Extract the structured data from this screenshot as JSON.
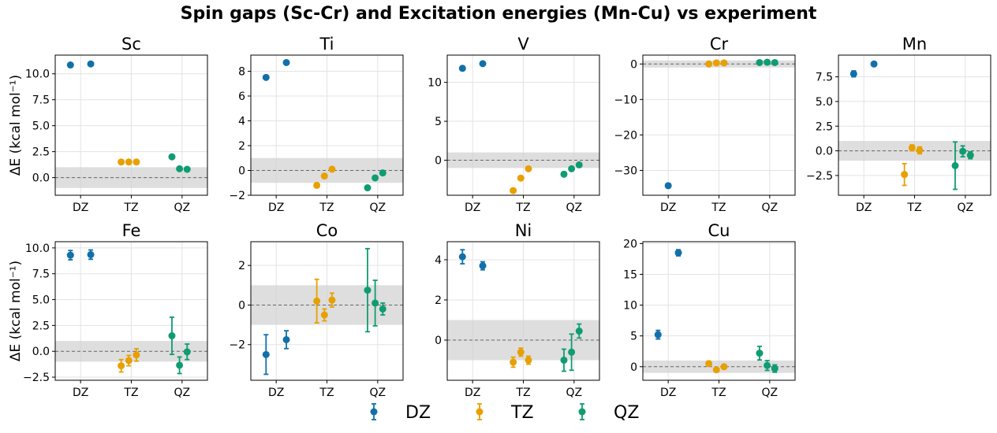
{
  "chart_data": {
    "type": "scatter",
    "title": "Spin gaps (Sc-Cr) and Excitation energies (Mn-Cu) vs experiment",
    "ylabel": "ΔE (kcal mol⁻¹)",
    "reference_band": [
      -1,
      1
    ],
    "series_colors": {
      "DZ": "#1170aa",
      "TZ": "#e8a000",
      "QZ": "#0e9c72"
    },
    "legend": [
      {
        "name": "DZ",
        "color": "#1170aa"
      },
      {
        "name": "TZ",
        "color": "#e8a000"
      },
      {
        "name": "QZ",
        "color": "#0e9c72"
      }
    ],
    "panels": [
      {
        "name": "Sc",
        "ylim": [
          -1.7,
          11.8
        ],
        "yticks": [
          0.0,
          2.5,
          5.0,
          7.5,
          10.0
        ],
        "yticklabels": [
          "0.0",
          "2.5",
          "5.0",
          "7.5",
          "10.0"
        ],
        "xticks": [
          "DZ",
          "TZ",
          "QZ"
        ],
        "points": [
          {
            "series": "DZ",
            "x": -0.2,
            "y": 10.85,
            "err": 0
          },
          {
            "series": "DZ",
            "x": 0.2,
            "y": 10.95,
            "err": 0
          },
          {
            "series": "TZ",
            "x": 0.8,
            "y": 1.5,
            "err": 0
          },
          {
            "series": "TZ",
            "x": 0.95,
            "y": 1.5,
            "err": 0
          },
          {
            "series": "TZ",
            "x": 1.1,
            "y": 1.5,
            "err": 0
          },
          {
            "series": "QZ",
            "x": 1.8,
            "y": 2.0,
            "err": 0
          },
          {
            "series": "QZ",
            "x": 1.95,
            "y": 0.85,
            "err": 0
          },
          {
            "series": "QZ",
            "x": 2.1,
            "y": 0.8,
            "err": 0
          }
        ]
      },
      {
        "name": "Ti",
        "ylim": [
          -2.0,
          9.3
        ],
        "yticks": [
          -2,
          0,
          2,
          4,
          6,
          8
        ],
        "yticklabels": [
          "−2",
          "0",
          "2",
          "4",
          "6",
          "8"
        ],
        "xticks": [
          "DZ",
          "TZ",
          "QZ"
        ],
        "points": [
          {
            "series": "DZ",
            "x": -0.2,
            "y": 7.5,
            "err": 0
          },
          {
            "series": "DZ",
            "x": 0.2,
            "y": 8.7,
            "err": 0
          },
          {
            "series": "TZ",
            "x": 0.8,
            "y": -1.2,
            "err": 0
          },
          {
            "series": "TZ",
            "x": 0.95,
            "y": -0.45,
            "err": 0
          },
          {
            "series": "TZ",
            "x": 1.1,
            "y": 0.1,
            "err": 0
          },
          {
            "series": "QZ",
            "x": 1.8,
            "y": -1.4,
            "err": 0
          },
          {
            "series": "QZ",
            "x": 1.95,
            "y": -0.6,
            "err": 0
          },
          {
            "series": "QZ",
            "x": 2.1,
            "y": -0.2,
            "err": 0
          }
        ]
      },
      {
        "name": "V",
        "ylim": [
          -4.5,
          13.5
        ],
        "yticks": [
          0,
          5,
          10
        ],
        "yticklabels": [
          "0",
          "5",
          "10"
        ],
        "xticks": [
          "DZ",
          "TZ",
          "QZ"
        ],
        "points": [
          {
            "series": "DZ",
            "x": -0.2,
            "y": 11.8,
            "err": 0
          },
          {
            "series": "DZ",
            "x": 0.2,
            "y": 12.4,
            "err": 0
          },
          {
            "series": "TZ",
            "x": 0.8,
            "y": -3.9,
            "err": 0
          },
          {
            "series": "TZ",
            "x": 0.95,
            "y": -2.3,
            "err": 0
          },
          {
            "series": "TZ",
            "x": 1.1,
            "y": -1.1,
            "err": 0
          },
          {
            "series": "QZ",
            "x": 1.8,
            "y": -1.8,
            "err": 0
          },
          {
            "series": "QZ",
            "x": 1.95,
            "y": -1.1,
            "err": 0
          },
          {
            "series": "QZ",
            "x": 2.1,
            "y": -0.6,
            "err": 0
          }
        ]
      },
      {
        "name": "Cr",
        "ylim": [
          -37.0,
          2.5
        ],
        "yticks": [
          -30,
          -20,
          -10,
          0
        ],
        "yticklabels": [
          "−30",
          "−20",
          "−10",
          "0"
        ],
        "xticks": [
          "DZ",
          "TZ",
          "QZ"
        ],
        "points": [
          {
            "series": "DZ",
            "x": 0.0,
            "y": -34.3,
            "err": 0.6
          },
          {
            "series": "TZ",
            "x": 0.8,
            "y": 0.0,
            "err": 0
          },
          {
            "series": "TZ",
            "x": 0.95,
            "y": 0.3,
            "err": 0
          },
          {
            "series": "TZ",
            "x": 1.1,
            "y": 0.3,
            "err": 0
          },
          {
            "series": "QZ",
            "x": 1.8,
            "y": 0.4,
            "err": 0
          },
          {
            "series": "QZ",
            "x": 1.95,
            "y": 0.5,
            "err": 0
          },
          {
            "series": "QZ",
            "x": 2.1,
            "y": 0.4,
            "err": 0
          }
        ]
      },
      {
        "name": "Mn",
        "ylim": [
          -4.5,
          9.7
        ],
        "yticks": [
          -2.5,
          0.0,
          2.5,
          5.0,
          7.5
        ],
        "yticklabels": [
          "−2.5",
          "0.0",
          "2.5",
          "5.0",
          "7.5"
        ],
        "xticks": [
          "DZ",
          "TZ",
          "QZ"
        ],
        "points": [
          {
            "series": "DZ",
            "x": -0.2,
            "y": 7.8,
            "err": 0.3
          },
          {
            "series": "DZ",
            "x": 0.2,
            "y": 8.8,
            "err": 0
          },
          {
            "series": "TZ",
            "x": 0.8,
            "y": -2.4,
            "err": 1.1
          },
          {
            "series": "TZ",
            "x": 0.95,
            "y": 0.3,
            "err": 0.3
          },
          {
            "series": "TZ",
            "x": 1.1,
            "y": 0.05,
            "err": 0.35
          },
          {
            "series": "QZ",
            "x": 1.8,
            "y": -1.5,
            "err": 2.4
          },
          {
            "series": "QZ",
            "x": 1.95,
            "y": -0.05,
            "err": 0.55
          },
          {
            "series": "QZ",
            "x": 2.1,
            "y": -0.45,
            "err": 0.35
          }
        ]
      },
      {
        "name": "Fe",
        "ylim": [
          -2.8,
          10.6
        ],
        "yticks": [
          -2.5,
          0.0,
          2.5,
          5.0,
          7.5,
          10.0
        ],
        "yticklabels": [
          "−2.5",
          "0.0",
          "2.5",
          "5.0",
          "7.5",
          "10.0"
        ],
        "xticks": [
          "DZ",
          "TZ",
          "QZ"
        ],
        "points": [
          {
            "series": "DZ",
            "x": -0.2,
            "y": 9.3,
            "err": 0.45
          },
          {
            "series": "DZ",
            "x": 0.2,
            "y": 9.35,
            "err": 0.45
          },
          {
            "series": "TZ",
            "x": 0.8,
            "y": -1.4,
            "err": 0.6
          },
          {
            "series": "TZ",
            "x": 0.95,
            "y": -0.9,
            "err": 0.5
          },
          {
            "series": "TZ",
            "x": 1.1,
            "y": -0.35,
            "err": 0.6
          },
          {
            "series": "QZ",
            "x": 1.8,
            "y": 1.5,
            "err": 1.8
          },
          {
            "series": "QZ",
            "x": 1.95,
            "y": -1.35,
            "err": 0.8
          },
          {
            "series": "QZ",
            "x": 2.1,
            "y": -0.05,
            "err": 0.75
          }
        ]
      },
      {
        "name": "Co",
        "ylim": [
          -3.8,
          3.2
        ],
        "yticks": [
          -2,
          0,
          2
        ],
        "yticklabels": [
          "−2",
          "0",
          "2"
        ],
        "xticks": [
          "DZ",
          "TZ",
          "QZ"
        ],
        "points": [
          {
            "series": "DZ",
            "x": -0.2,
            "y": -2.5,
            "err": 1.0
          },
          {
            "series": "DZ",
            "x": 0.2,
            "y": -1.75,
            "err": 0.45
          },
          {
            "series": "TZ",
            "x": 0.8,
            "y": 0.2,
            "err": 1.1
          },
          {
            "series": "TZ",
            "x": 0.95,
            "y": -0.5,
            "err": 0.3
          },
          {
            "series": "TZ",
            "x": 1.1,
            "y": 0.25,
            "err": 0.35
          },
          {
            "series": "QZ",
            "x": 1.8,
            "y": 0.75,
            "err": 2.1
          },
          {
            "series": "QZ",
            "x": 1.95,
            "y": 0.1,
            "err": 1.15
          },
          {
            "series": "QZ",
            "x": 2.1,
            "y": -0.2,
            "err": 0.3
          }
        ]
      },
      {
        "name": "Ni",
        "ylim": [
          -2.0,
          4.9
        ],
        "yticks": [
          0,
          2,
          4
        ],
        "yticklabels": [
          "0",
          "2",
          "4"
        ],
        "xticks": [
          "DZ",
          "TZ",
          "QZ"
        ],
        "points": [
          {
            "series": "DZ",
            "x": -0.2,
            "y": 4.15,
            "err": 0.35
          },
          {
            "series": "DZ",
            "x": 0.2,
            "y": 3.7,
            "err": 0.2
          },
          {
            "series": "TZ",
            "x": 0.8,
            "y": -1.1,
            "err": 0.25
          },
          {
            "series": "TZ",
            "x": 0.95,
            "y": -0.6,
            "err": 0.2
          },
          {
            "series": "TZ",
            "x": 1.1,
            "y": -1.0,
            "err": 0.2
          },
          {
            "series": "QZ",
            "x": 1.8,
            "y": -1.0,
            "err": 0.55
          },
          {
            "series": "QZ",
            "x": 1.95,
            "y": -0.6,
            "err": 0.9
          },
          {
            "series": "QZ",
            "x": 2.1,
            "y": 0.45,
            "err": 0.35
          }
        ]
      },
      {
        "name": "Cu",
        "ylim": [
          -2.2,
          20.3
        ],
        "yticks": [
          0,
          5,
          10,
          15,
          20
        ],
        "yticklabels": [
          "0",
          "5",
          "10",
          "15",
          "20"
        ],
        "xticks": [
          "DZ",
          "TZ",
          "QZ"
        ],
        "points": [
          {
            "series": "DZ",
            "x": -0.2,
            "y": 5.2,
            "err": 0.7
          },
          {
            "series": "DZ",
            "x": 0.2,
            "y": 18.5,
            "err": 0.5
          },
          {
            "series": "TZ",
            "x": 0.8,
            "y": 0.5,
            "err": 0.4
          },
          {
            "series": "TZ",
            "x": 0.95,
            "y": -0.5,
            "err": 0.3
          },
          {
            "series": "TZ",
            "x": 1.1,
            "y": 0.0,
            "err": 0.3
          },
          {
            "series": "QZ",
            "x": 1.8,
            "y": 2.2,
            "err": 1.1
          },
          {
            "series": "QZ",
            "x": 1.95,
            "y": 0.2,
            "err": 0.8
          },
          {
            "series": "QZ",
            "x": 2.1,
            "y": -0.3,
            "err": 0.6
          }
        ]
      }
    ]
  }
}
